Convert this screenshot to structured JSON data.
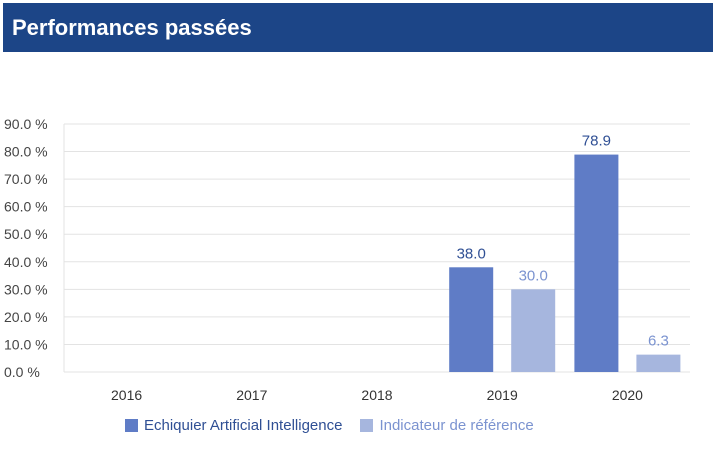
{
  "header": {
    "title": "Performances passées"
  },
  "chart_data": {
    "type": "bar",
    "categories": [
      "2016",
      "2017",
      "2018",
      "2019",
      "2020"
    ],
    "series": [
      {
        "name": "Echiquier Artificial Intelligence",
        "values": [
          null,
          null,
          null,
          38.0,
          78.9
        ],
        "color": "#5f7cc6",
        "label_color": "#2f4f94"
      },
      {
        "name": "Indicateur de référence",
        "values": [
          null,
          null,
          null,
          30.0,
          6.3
        ],
        "color": "#a6b6de",
        "label_color": "#7b93d0"
      }
    ],
    "ylim": [
      0,
      90
    ],
    "yticks": [
      0,
      10,
      20,
      30,
      40,
      50,
      60,
      70,
      80,
      90
    ],
    "ytick_labels": [
      "0.0 %",
      "10.0 %",
      "20.0 %",
      "30.0 %",
      "40.0 %",
      "50.0 %",
      "60.0 %",
      "70.0 %",
      "80.0 %",
      "90.0 %"
    ],
    "grid": true,
    "legend_position": "bottom"
  }
}
